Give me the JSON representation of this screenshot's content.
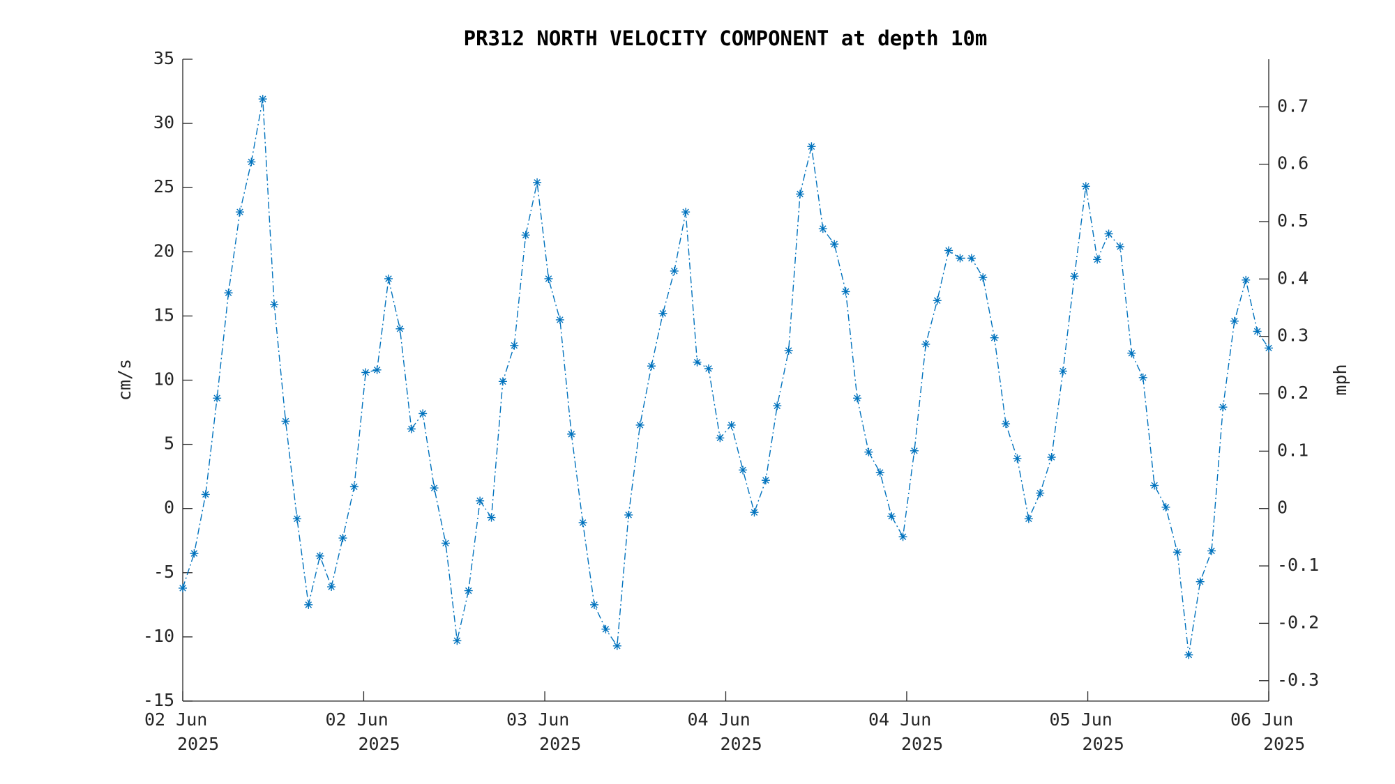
{
  "chart_data": {
    "type": "line",
    "title": "PR312 NORTH VELOCITY COMPONENT at depth 10m",
    "y_label": "cm/s",
    "y2_label": "mph",
    "x": [
      0,
      1,
      2,
      3,
      4,
      5,
      6,
      7,
      8,
      9,
      10,
      11,
      12,
      13,
      14,
      15,
      16,
      17,
      18,
      19,
      20,
      21,
      22,
      23,
      24,
      25,
      26,
      27,
      28,
      29,
      30,
      31,
      32,
      33,
      34,
      35,
      36,
      37,
      38,
      39,
      40,
      41,
      42,
      43,
      44,
      45,
      46,
      47,
      48,
      49,
      50,
      51,
      52,
      53,
      54,
      55,
      56,
      57,
      58,
      59,
      60,
      61,
      62,
      63,
      64,
      65,
      66,
      67,
      68,
      69,
      70,
      71,
      72,
      73,
      74,
      75,
      76,
      77,
      78,
      79,
      80,
      81,
      82,
      83,
      84,
      85,
      86,
      87,
      88,
      89,
      90,
      91,
      92,
      93,
      94,
      95
    ],
    "series": [
      {
        "name": "North velocity",
        "color": "#0072bd",
        "values": [
          -6.2,
          -3.5,
          1.1,
          8.6,
          16.8,
          23.1,
          27.0,
          31.9,
          15.9,
          6.8,
          -0.8,
          -7.5,
          -3.7,
          -6.1,
          -2.3,
          1.7,
          10.6,
          10.8,
          17.9,
          14.0,
          6.2,
          7.4,
          1.6,
          -2.7,
          -10.3,
          -6.4,
          0.6,
          -0.7,
          9.9,
          12.7,
          21.3,
          25.4,
          17.9,
          14.7,
          5.8,
          -1.1,
          -7.5,
          -9.4,
          -10.7,
          -0.5,
          6.5,
          11.1,
          15.2,
          18.5,
          23.1,
          11.4,
          10.9,
          5.5,
          6.5,
          3.0,
          -0.3,
          2.2,
          8.0,
          12.3,
          24.5,
          28.2,
          21.8,
          20.6,
          16.9,
          8.6,
          4.4,
          2.8,
          -0.6,
          -2.2,
          4.5,
          12.8,
          16.2,
          20.1,
          19.5,
          19.5,
          18.0,
          13.3,
          6.6,
          3.9,
          -0.8,
          1.2,
          4.0,
          10.7,
          18.1,
          25.1,
          19.4,
          21.4,
          20.4,
          12.1,
          10.2,
          1.8,
          0.1,
          -3.4,
          -11.4,
          -5.7,
          -3.3,
          7.9,
          14.6,
          17.8,
          13.8,
          12.5
        ]
      }
    ],
    "xlim": [
      0,
      95
    ],
    "xticks": [
      {
        "value": 0,
        "label": [
          "02 Jun",
          "2025"
        ]
      },
      {
        "value": 15.83,
        "label": [
          "02 Jun",
          "2025"
        ]
      },
      {
        "value": 31.67,
        "label": [
          "03 Jun",
          "2025"
        ]
      },
      {
        "value": 47.5,
        "label": [
          "04 Jun",
          "2025"
        ]
      },
      {
        "value": 63.33,
        "label": [
          "04 Jun",
          "2025"
        ]
      },
      {
        "value": 79.17,
        "label": [
          "05 Jun",
          "2025"
        ]
      },
      {
        "value": 95,
        "label": [
          "06 Jun",
          "2025"
        ]
      }
    ],
    "ylim": [
      -15,
      35
    ],
    "yticks": [
      -15,
      -10,
      -5,
      0,
      5,
      10,
      15,
      20,
      25,
      30,
      35
    ],
    "y2lim": [
      -0.3355,
      0.7829
    ],
    "y2ticks": [
      -0.3,
      -0.2,
      -0.1,
      0,
      0.1,
      0.2,
      0.3,
      0.4,
      0.5,
      0.6,
      0.7
    ],
    "grid": false
  }
}
